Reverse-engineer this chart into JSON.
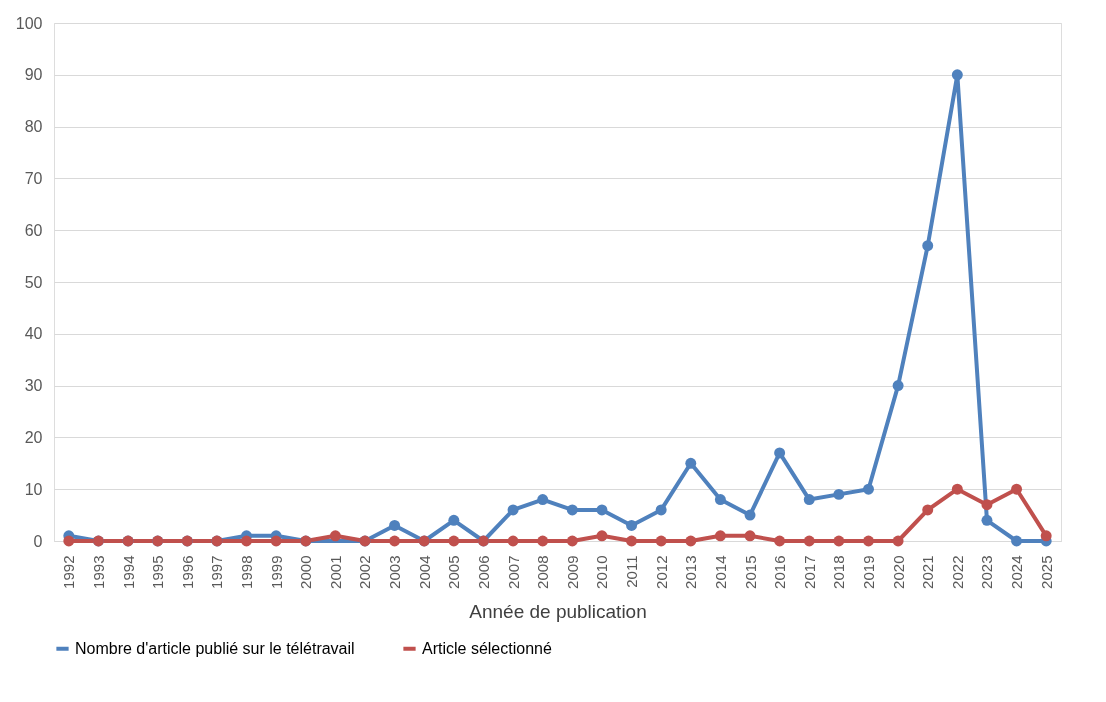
{
  "chart_data": {
    "type": "line",
    "xlabel": "Année de publication",
    "categories": [
      "1992",
      "1993",
      "1994",
      "1995",
      "1996",
      "1997",
      "1998",
      "1999",
      "2000",
      "2001",
      "2002",
      "2003",
      "2004",
      "2005",
      "2006",
      "2007",
      "2008",
      "2009",
      "2010",
      "2011",
      "2012",
      "2013",
      "2014",
      "2015",
      "2016",
      "2017",
      "2018",
      "2019",
      "2020",
      "2021",
      "2022",
      "2023",
      "2024",
      "2025"
    ],
    "series": [
      {
        "name": "Nombre d'article publié sur le télétravail",
        "color": "#4f81bd",
        "values": [
          1,
          0,
          0,
          0,
          0,
          0,
          1,
          1,
          0,
          null,
          0,
          3,
          0,
          4,
          0,
          6,
          8,
          6,
          6,
          3,
          6,
          15,
          8,
          5,
          17,
          8,
          9,
          10,
          30,
          57,
          90,
          4,
          0,
          0
        ]
      },
      {
        "name": "Article sélectionné",
        "color": "#c0504d",
        "values": [
          0,
          0,
          0,
          0,
          0,
          0,
          0,
          0,
          0,
          1,
          0,
          0,
          0,
          0,
          0,
          0,
          0,
          0,
          1,
          0,
          0,
          0,
          1,
          1,
          0,
          0,
          0,
          0,
          0,
          6,
          10,
          7,
          10,
          1
        ]
      }
    ],
    "ylim": [
      0,
      100
    ],
    "yticks": [
      0,
      10,
      20,
      30,
      40,
      50,
      60,
      70,
      80,
      90,
      100
    ],
    "grid": "y",
    "legend": "bottom",
    "marker": "circle",
    "line_style": "solid"
  }
}
